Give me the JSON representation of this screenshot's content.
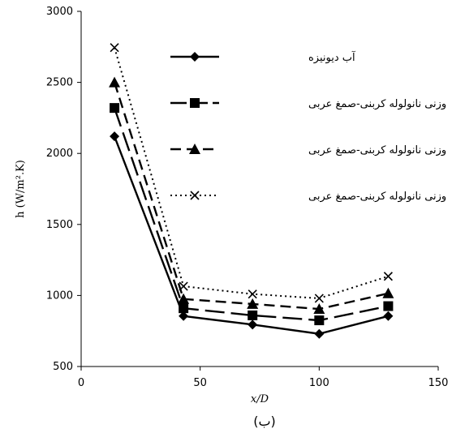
{
  "chart_data": {
    "type": "line",
    "caption": "(ب)",
    "xlabel": "x/D",
    "ylabel": "h (W/m².K)",
    "xlim": [
      0,
      150
    ],
    "ylim": [
      500,
      3000
    ],
    "xticks": [
      "0",
      "50",
      "100",
      "150"
    ],
    "yticks": [
      "500",
      "1000",
      "1500",
      "2000",
      "2500",
      "3000"
    ],
    "grid": false,
    "legend_position": "top-right",
    "x": [
      14,
      43,
      72,
      100,
      129
    ],
    "series": [
      {
        "name": "آب دیونیزه",
        "values": [
          2120,
          855,
          795,
          730,
          855
        ],
        "marker": "diamond",
        "line_style": "solid",
        "color": "#000000"
      },
      {
        "name": "۰/۰۵٪ وزنی نانولوله کربنی-صمغ عربی",
        "values": [
          2320,
          910,
          860,
          825,
          925
        ],
        "marker": "square",
        "line_style": "long-dash",
        "color": "#000000"
      },
      {
        "name": "۰/۱٪ وزنی نانولوله کربنی-صمغ عربی",
        "values": [
          2500,
          975,
          940,
          905,
          1015
        ],
        "marker": "triangle",
        "line_style": "dash",
        "color": "#000000"
      },
      {
        "name": "۰/۲٪ وزنی نانولوله کربنی-صمغ عربی",
        "values": [
          2745,
          1065,
          1010,
          980,
          1135
        ],
        "marker": "x",
        "line_style": "dotted",
        "color": "#000000"
      }
    ]
  }
}
